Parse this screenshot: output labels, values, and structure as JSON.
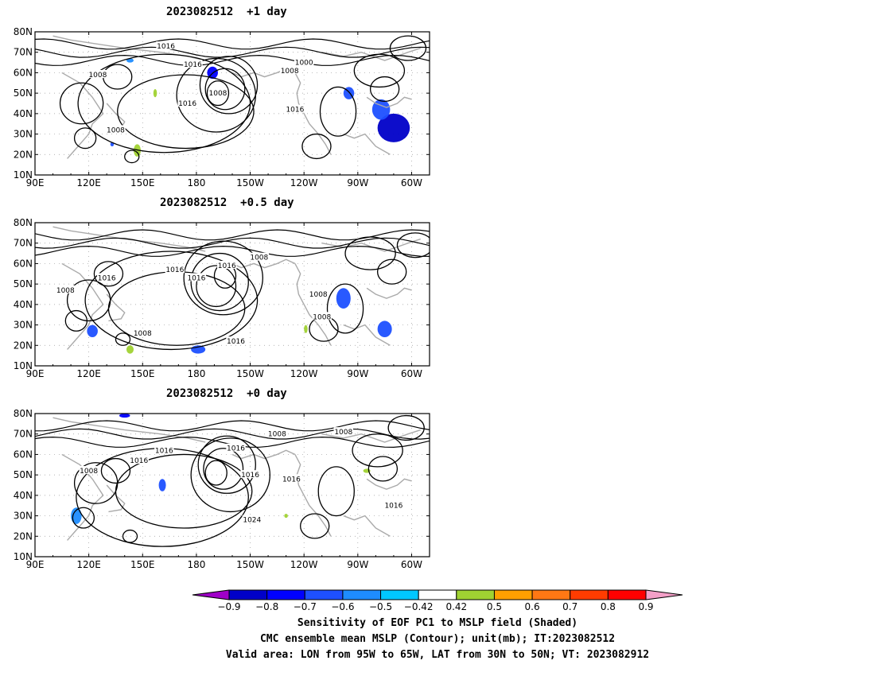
{
  "panels": [
    {
      "title": "2023082512  +1 day",
      "contour_labels": [
        "1016",
        "1016",
        "1000",
        "1008",
        "1008",
        "1008",
        "1016",
        "1016",
        "1008"
      ],
      "shading": {
        "blue_regions": [
          {
            "lon": 290,
            "lat": 33,
            "rx": 9,
            "ry": 7,
            "level": -0.8
          },
          {
            "lon": 283,
            "lat": 42,
            "rx": 5,
            "ry": 5,
            "level": -0.6
          },
          {
            "lon": 265,
            "lat": 50,
            "rx": 3,
            "ry": 3,
            "level": -0.6
          },
          {
            "lon": 189,
            "lat": 60,
            "rx": 3,
            "ry": 3,
            "level": -0.7
          },
          {
            "lon": 133,
            "lat": 25,
            "rx": 1,
            "ry": 1,
            "level": -0.6
          },
          {
            "lon": 143,
            "lat": 66,
            "rx": 2,
            "ry": 1,
            "level": -0.5
          }
        ],
        "green_regions": [
          {
            "lon": 147,
            "lat": 22,
            "rx": 2,
            "ry": 3,
            "level": 0.5
          },
          {
            "lon": 157,
            "lat": 50,
            "rx": 1,
            "ry": 2,
            "level": 0.5
          }
        ]
      }
    },
    {
      "title": "2023082512  +0.5 day",
      "contour_labels": [
        "1008",
        "1016",
        "1016",
        "1008",
        "1016",
        "1016",
        "1008",
        "1008",
        "1008",
        "1016"
      ],
      "shading": {
        "blue_regions": [
          {
            "lon": 262,
            "lat": 43,
            "rx": 4,
            "ry": 5,
            "level": -0.6
          },
          {
            "lon": 285,
            "lat": 28,
            "rx": 4,
            "ry": 4,
            "level": -0.6
          },
          {
            "lon": 122,
            "lat": 27,
            "rx": 3,
            "ry": 3,
            "level": -0.6
          },
          {
            "lon": 181,
            "lat": 18,
            "rx": 4,
            "ry": 2,
            "level": -0.6
          }
        ],
        "green_regions": [
          {
            "lon": 143,
            "lat": 18,
            "rx": 2,
            "ry": 2,
            "level": 0.5
          },
          {
            "lon": 241,
            "lat": 28,
            "rx": 1,
            "ry": 2,
            "level": 0.5
          }
        ]
      }
    },
    {
      "title": "2023082512  +0 day",
      "contour_labels": [
        "1016",
        "1008",
        "1016",
        "1016",
        "1008",
        "1016",
        "1016",
        "1024",
        "1016",
        "1008"
      ],
      "shading": {
        "blue_regions": [
          {
            "lon": 161,
            "lat": 45,
            "rx": 2,
            "ry": 3,
            "level": -0.6
          },
          {
            "lon": 113,
            "lat": 30,
            "rx": 3,
            "ry": 4,
            "level": -0.5
          },
          {
            "lon": 140,
            "lat": 79,
            "rx": 3,
            "ry": 1,
            "level": -0.7
          }
        ],
        "green_regions": [
          {
            "lon": 275,
            "lat": 52,
            "rx": 2,
            "ry": 1,
            "level": 0.5
          },
          {
            "lon": 230,
            "lat": 30,
            "rx": 1,
            "ry": 1,
            "level": 0.5
          }
        ]
      }
    }
  ],
  "axes": {
    "lat_labels": [
      "80N",
      "70N",
      "60N",
      "50N",
      "40N",
      "30N",
      "20N",
      "10N"
    ],
    "lon_labels": [
      "90E",
      "120E",
      "150E",
      "180",
      "150W",
      "120W",
      "90W",
      "60W"
    ]
  },
  "colorbar": {
    "labels": [
      "-0.9",
      "-0.8",
      "-0.7",
      "-0.6",
      "-0.5",
      "-0.42",
      "0.42",
      "0.5",
      "0.6",
      "0.7",
      "0.8",
      "0.9"
    ],
    "colors": [
      "#a000c8",
      "#0000c8",
      "#0000ff",
      "#1e50ff",
      "#1e8cff",
      "#00c8ff",
      "#ffffff",
      "#a0d232",
      "#ffa000",
      "#ff7814",
      "#ff3c00",
      "#ff0000",
      "#f4a0c8"
    ]
  },
  "caption": {
    "line1": "Sensitivity of EOF PC1 to MSLP field (Shaded)",
    "line2": "CMC ensemble mean MSLP (Contour); unit(mb); IT:2023082512",
    "line3": "Valid area: LON from 95W to 65W, LAT from 30N to 50N; VT: 2023082912"
  }
}
